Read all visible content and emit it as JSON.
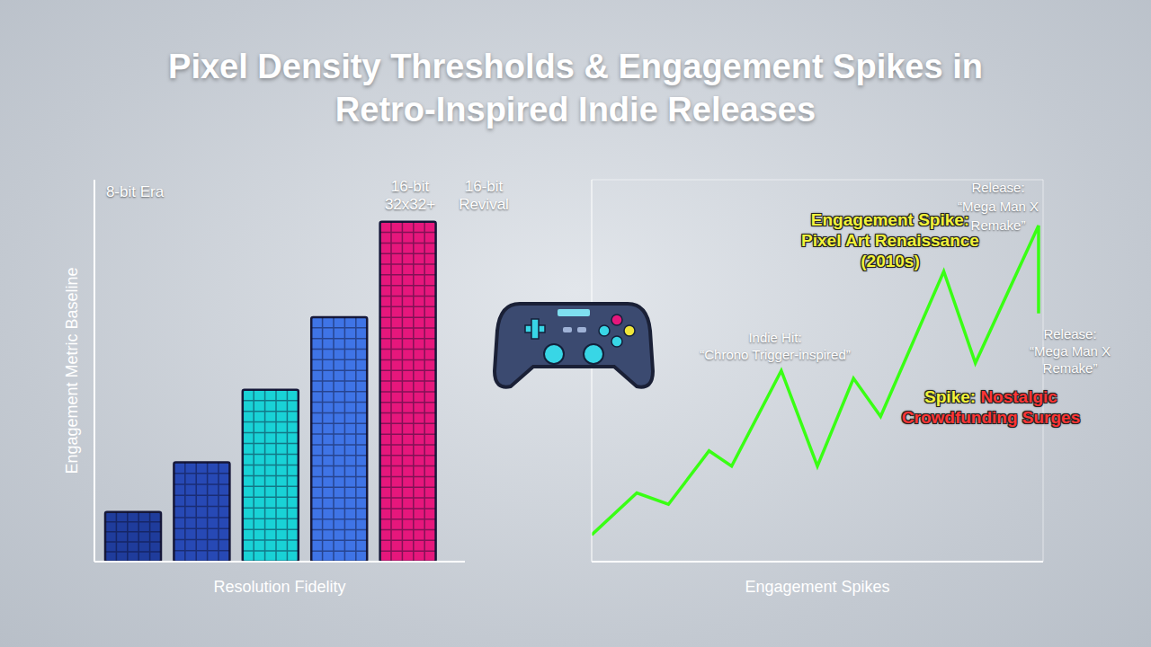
{
  "title": "Pixel Density Thresholds & Engagement Spikes in Retro-Inspired Indie Releases",
  "chart_data": [
    {
      "type": "bar",
      "x_label": "Resolution Fidelity",
      "y_label": "Engagement Metric Baseline",
      "categories": [
        null,
        null,
        null,
        null,
        null
      ],
      "values": [
        13,
        26,
        45,
        64,
        89
      ],
      "colors": [
        "#1f3c9c",
        "#2749b5",
        "#19d2d6",
        "#3f74e6",
        "#e6177c"
      ],
      "ylim": [
        0,
        100
      ],
      "yticks": [
        0,
        100
      ],
      "grid": false,
      "tick_labels": false,
      "annotations": [
        {
          "lines": [
            "8-bit Era"
          ],
          "color": "#ffffff"
        },
        {
          "lines": [
            "16-bit",
            "32x32+"
          ],
          "color": "#ffffff"
        },
        {
          "lines": [
            "16-bit",
            "Revival"
          ],
          "color": "#ffffff"
        }
      ]
    },
    {
      "type": "line",
      "x_label": "Engagement Spikes",
      "x": [
        0,
        10,
        17,
        26,
        31,
        42,
        50,
        58,
        64,
        78,
        85,
        99,
        99
      ],
      "values": [
        7,
        18,
        15,
        29,
        25,
        50,
        25,
        48,
        38,
        76,
        52,
        88,
        65
      ],
      "color": "#39ff14",
      "xlim": [
        0,
        100
      ],
      "ylim": [
        0,
        100
      ],
      "xticks": [
        0,
        10,
        20,
        30,
        40,
        50,
        60,
        70,
        80,
        90,
        100
      ],
      "yticks": [
        0,
        10,
        20,
        30,
        40,
        50,
        60,
        70,
        80,
        90,
        100
      ],
      "grid": true,
      "tick_labels": false,
      "annotations": [
        {
          "lines": [
            "Indie Hit:",
            "“Chrono Trigger-inspired”"
          ],
          "color": "#ffffff"
        },
        {
          "lines": [
            "Engagement Spike:",
            "Pixel Art Renaissance",
            "(2010s)"
          ],
          "color": "#f2f23a"
        },
        {
          "lines": [
            "Release:",
            "“Mega Man X",
            "Remake”"
          ],
          "color": "#ffffff"
        },
        {
          "lines": [
            "Release:",
            "“Mega Man X",
            "Remake”"
          ],
          "color": "#ffffff"
        },
        {
          "lines": [
            [
              {
                "text": "Spike:",
                "color": "#f2f23a"
              },
              {
                "text": "Nostalgic",
                "color": "#ff3535"
              }
            ],
            [
              {
                "text": "Crowdfunding Surges",
                "color": "#ff3535"
              }
            ]
          ],
          "color": "#ff3535"
        }
      ]
    }
  ]
}
